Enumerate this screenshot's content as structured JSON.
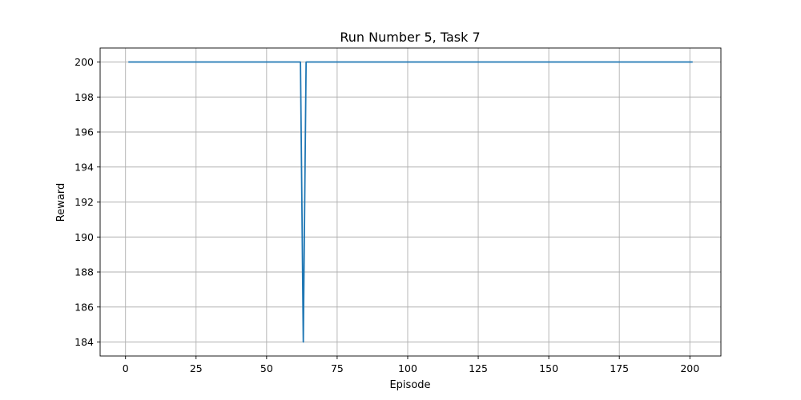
{
  "chart_data": {
    "type": "line",
    "title": "Run Number 5, Task 7",
    "xlabel": "Episode",
    "ylabel": "Reward",
    "xlim": [
      -9,
      211
    ],
    "ylim": [
      183.2,
      200.8
    ],
    "xticks": [
      0,
      25,
      50,
      75,
      100,
      125,
      150,
      175,
      200
    ],
    "yticks": [
      184,
      186,
      188,
      190,
      192,
      194,
      196,
      198,
      200
    ],
    "grid": true,
    "series": [
      {
        "color": "#1f77b4",
        "points": [
          [
            1,
            200
          ],
          [
            62,
            200
          ],
          [
            63,
            184
          ],
          [
            64,
            200
          ],
          [
            201,
            200
          ]
        ]
      }
    ]
  }
}
